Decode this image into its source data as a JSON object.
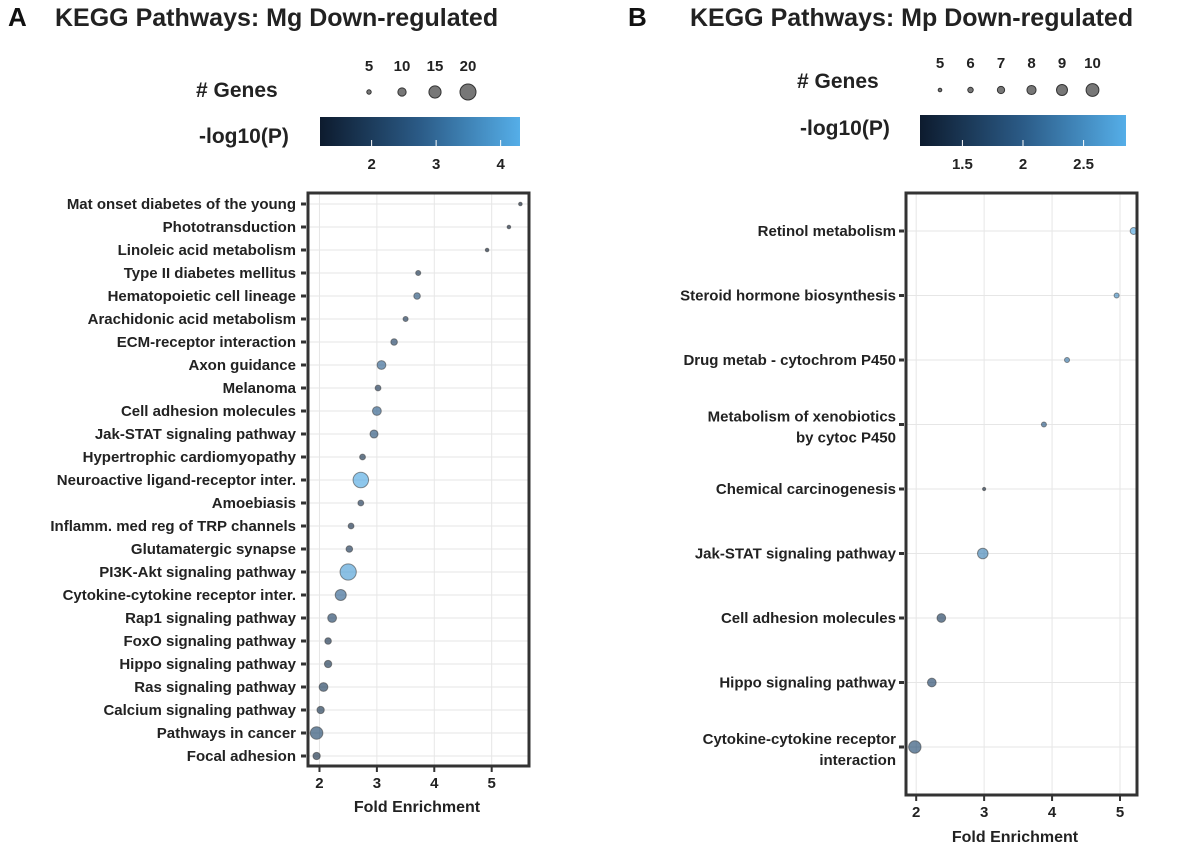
{
  "colors": {
    "low": "#0d1b2e",
    "mid": "#2b5b87",
    "high": "#55aee8",
    "frame": "#333333",
    "grid": "#e6e6e6"
  },
  "chart_data": [
    {
      "panel": "A",
      "type": "scatter",
      "title": "KEGG Pathways: Mg Down-regulated",
      "xlabel": "Fold Enrichment",
      "xlim": [
        1.8,
        5.65
      ],
      "xticks": [
        2,
        3,
        4,
        5
      ],
      "size_legend": {
        "title": "# Genes",
        "values": [
          5,
          10,
          15,
          20
        ]
      },
      "color_legend": {
        "title": "-log10(P)",
        "range": [
          1.2,
          4.3
        ],
        "ticks": [
          2,
          3,
          4
        ]
      },
      "points": [
        {
          "label": "Mat onset diabetes of the young",
          "x": 5.5,
          "genes": 2,
          "p": 1.3
        },
        {
          "label": "Phototransduction",
          "x": 5.3,
          "genes": 2,
          "p": 1.3
        },
        {
          "label": "Linoleic acid metabolism",
          "x": 4.92,
          "genes": 2,
          "p": 1.3
        },
        {
          "label": "Type II diabetes mellitus",
          "x": 3.72,
          "genes": 4,
          "p": 1.8
        },
        {
          "label": "Hematopoietic cell lineage",
          "x": 3.7,
          "genes": 6,
          "p": 2.6
        },
        {
          "label": "Arachidonic acid metabolism",
          "x": 3.5,
          "genes": 4,
          "p": 1.9
        },
        {
          "label": "ECM-receptor interaction",
          "x": 3.3,
          "genes": 6,
          "p": 2.2
        },
        {
          "label": "Axon guidance",
          "x": 3.08,
          "genes": 9,
          "p": 2.9
        },
        {
          "label": "Melanoma",
          "x": 3.02,
          "genes": 5,
          "p": 1.9
        },
        {
          "label": "Cell adhesion molecules",
          "x": 3.0,
          "genes": 9,
          "p": 2.8
        },
        {
          "label": "Jak-STAT signaling pathway",
          "x": 2.95,
          "genes": 8,
          "p": 2.5
        },
        {
          "label": "Hypertrophic cardiomyopathy",
          "x": 2.75,
          "genes": 5,
          "p": 1.8
        },
        {
          "label": "Neuroactive ligand-receptor inter.",
          "x": 2.72,
          "genes": 18,
          "p": 4.2
        },
        {
          "label": "Amoebiasis",
          "x": 2.72,
          "genes": 5,
          "p": 1.9
        },
        {
          "label": "Inflamm. med reg of TRP channels",
          "x": 2.55,
          "genes": 5,
          "p": 1.7
        },
        {
          "label": "Glutamatergic synapse",
          "x": 2.52,
          "genes": 6,
          "p": 1.9
        },
        {
          "label": "PI3K-Akt signaling pathway",
          "x": 2.5,
          "genes": 19,
          "p": 4.0
        },
        {
          "label": "Cytokine-cytokine receptor inter.",
          "x": 2.37,
          "genes": 12,
          "p": 2.9
        },
        {
          "label": "Rap1 signaling pathway",
          "x": 2.22,
          "genes": 9,
          "p": 2.2
        },
        {
          "label": "FoxO signaling pathway",
          "x": 2.15,
          "genes": 6,
          "p": 1.7
        },
        {
          "label": "Hippo signaling pathway",
          "x": 2.15,
          "genes": 7,
          "p": 1.8
        },
        {
          "label": "Ras signaling pathway",
          "x": 2.07,
          "genes": 9,
          "p": 2.0
        },
        {
          "label": "Calcium signaling pathway",
          "x": 2.02,
          "genes": 7,
          "p": 1.8
        },
        {
          "label": "Pathways in cancer",
          "x": 1.95,
          "genes": 14,
          "p": 2.3
        },
        {
          "label": "Focal adhesion",
          "x": 1.95,
          "genes": 7,
          "p": 1.6
        }
      ]
    },
    {
      "panel": "B",
      "type": "scatter",
      "title": "KEGG Pathways: Mp Down-regulated",
      "xlabel": "Fold Enrichment",
      "xlim": [
        1.85,
        5.25
      ],
      "xticks": [
        2,
        3,
        4,
        5
      ],
      "size_legend": {
        "title": "# Genes",
        "values": [
          5,
          6,
          7,
          8,
          9,
          10
        ]
      },
      "color_legend": {
        "title": "-log10(P)",
        "range": [
          1.15,
          2.85
        ],
        "ticks": [
          1.5,
          2,
          2.5
        ]
      },
      "points": [
        {
          "label": "Retinol metabolism",
          "x": 5.2,
          "genes": 7,
          "p": 2.8
        },
        {
          "label": "Steroid hormone biosynthesis",
          "x": 4.95,
          "genes": 6,
          "p": 2.5
        },
        {
          "label": "Drug metab - cytochrom P450",
          "x": 4.22,
          "genes": 6,
          "p": 2.3
        },
        {
          "label": "Metabolism of xenobiotics\nby cytoc P450",
          "x": 3.88,
          "genes": 6,
          "p": 2.0
        },
        {
          "label": "Chemical carcinogenesis",
          "x": 3.0,
          "genes": 5,
          "p": 1.3
        },
        {
          "label": "Jak-STAT signaling pathway",
          "x": 2.98,
          "genes": 9,
          "p": 2.4
        },
        {
          "label": "Cell adhesion molecules",
          "x": 2.37,
          "genes": 8,
          "p": 1.6
        },
        {
          "label": "Hippo signaling pathway",
          "x": 2.23,
          "genes": 8,
          "p": 1.7
        },
        {
          "label": "Cytokine-cytokine receptor\ninteraction",
          "x": 1.98,
          "genes": 10,
          "p": 1.8
        }
      ]
    }
  ]
}
